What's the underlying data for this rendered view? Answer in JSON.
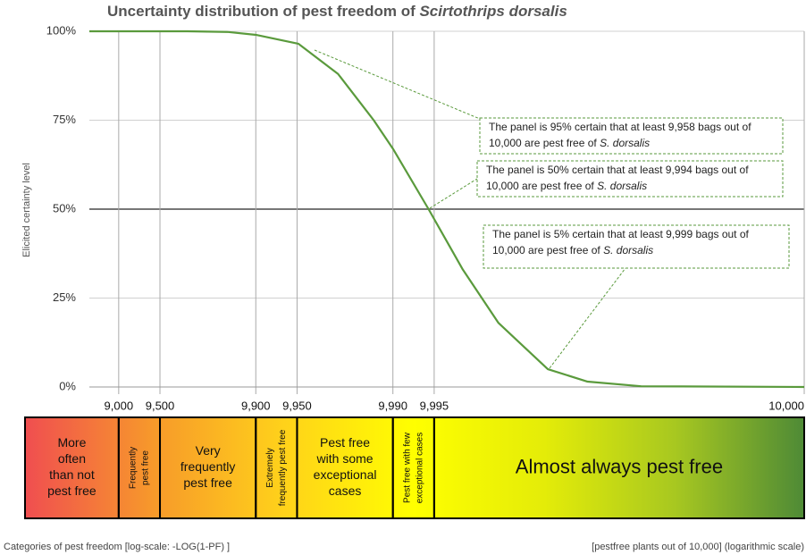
{
  "chart_data": {
    "type": "line",
    "title": "Uncertainty distribution of pest freedom of ",
    "title_emphasis": "Scirtothrips dorsalis",
    "ylabel": "Elicited certainty level",
    "xlabel": "Categories of pest freedom [log-scale: -LOG(1-PF) ]",
    "footnote": "[pestfree plants out of 10,000] (logarithmic scale)",
    "log_scale": true,
    "grid": true,
    "xlim": [
      0.786,
      6
    ],
    "xticks": [
      {
        "value": 1,
        "label": "9,000"
      },
      {
        "value": 1.301,
        "label": "9,500"
      },
      {
        "value": 2,
        "label": "9,900"
      },
      {
        "value": 2.301,
        "label": "9,950"
      },
      {
        "value": 3,
        "label": "9,990"
      },
      {
        "value": 3.301,
        "label": "9,995"
      },
      {
        "value": 6,
        "label": "10,000"
      }
    ],
    "ylim": [
      0,
      100
    ],
    "yticks": [
      {
        "value": 0,
        "label": "0%"
      },
      {
        "value": 25,
        "label": "25%"
      },
      {
        "value": 50,
        "label": "50%"
      },
      {
        "value": 75,
        "label": "75%"
      },
      {
        "value": 100,
        "label": "100%"
      }
    ],
    "series": [
      {
        "color": "#5a9a3c",
        "x": [
          0.786,
          1.5,
          1.8,
          2.0,
          2.31,
          2.6,
          2.86,
          3.0,
          3.26,
          3.51,
          3.77,
          4.13,
          4.42,
          4.81,
          6
        ],
        "values": [
          100,
          100,
          99.8,
          99,
          96.5,
          88,
          75,
          67,
          50,
          33,
          18,
          5,
          1.5,
          0.2,
          0
        ]
      }
    ],
    "annotations": [
      {
        "text": "The panel is 95% certain that at least 9,958 bags out of",
        "text2": "10,000 are pest free of ",
        "emphasis": "S. dorsalis"
      },
      {
        "text": "The panel is 50% certain that at least 9,994 bags out of",
        "text2": "10,000 are pest free of ",
        "emphasis": "S. dorsalis"
      },
      {
        "text": "The panel is 5% certain that at least 9,999 bags out of",
        "text2": "10,000 are pest free of ",
        "emphasis": "S. dorsalis"
      }
    ],
    "bands": [
      {
        "lines": [
          "More",
          "often",
          "than not",
          "pest free"
        ],
        "rotated": false
      },
      {
        "lines": [
          "Frequently",
          "pest free"
        ],
        "rotated": true
      },
      {
        "lines": [
          "Very",
          "frequently",
          "pest free"
        ],
        "rotated": false
      },
      {
        "lines": [
          "Extremely",
          "frequently pest free"
        ],
        "rotated": true
      },
      {
        "lines": [
          "Pest free",
          "with some",
          "exceptional",
          "cases"
        ],
        "rotated": false
      },
      {
        "lines": [
          "Pest free with few",
          "exceptional cases"
        ],
        "rotated": true
      },
      {
        "lines": [
          "Almost always pest free"
        ],
        "rotated": false
      }
    ],
    "band_colors": [
      "#f04e50",
      "#f79a2a",
      "#ffd21a",
      "#ffff00",
      "#e4ec08",
      "#a8c820",
      "#4e8a36"
    ]
  }
}
